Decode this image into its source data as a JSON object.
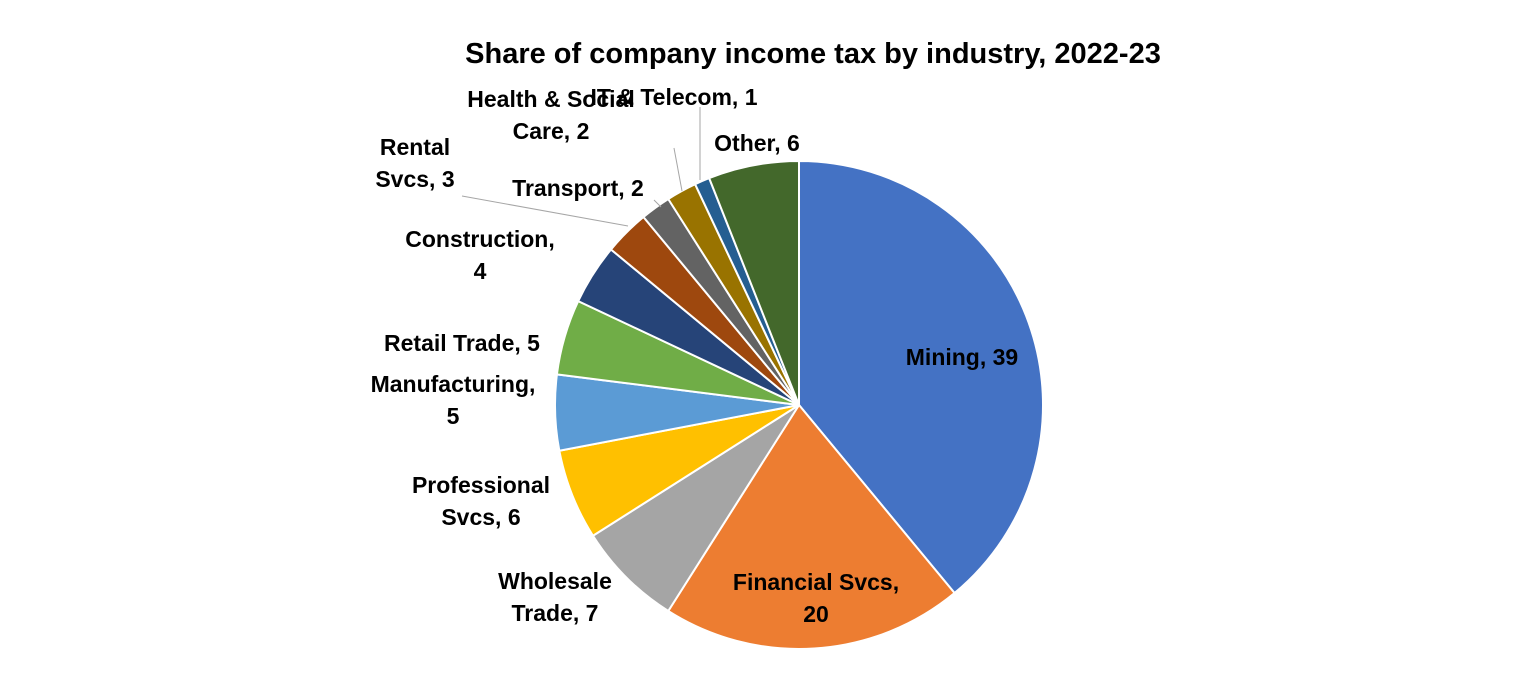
{
  "chart_data": {
    "type": "pie",
    "title": "Share of company income tax by industry, 2022-23",
    "slices": [
      {
        "label": "Mining",
        "value": 39,
        "color": "#4472C4",
        "lines": [
          "Mining, 39"
        ]
      },
      {
        "label": "Financial Svcs",
        "value": 20,
        "color": "#ED7D31",
        "lines": [
          "Financial Svcs,",
          "20"
        ]
      },
      {
        "label": "Wholesale Trade",
        "value": 7,
        "color": "#A5A5A5",
        "lines": [
          "Wholesale",
          "Trade, 7"
        ]
      },
      {
        "label": "Professional Svcs",
        "value": 6,
        "color": "#FFC000",
        "lines": [
          "Professional",
          "Svcs, 6"
        ]
      },
      {
        "label": "Manufacturing",
        "value": 5,
        "color": "#5B9BD5",
        "lines": [
          "Manufacturing,",
          "5"
        ]
      },
      {
        "label": "Retail Trade",
        "value": 5,
        "color": "#70AD47",
        "lines": [
          "Retail Trade, 5"
        ]
      },
      {
        "label": "Construction",
        "value": 4,
        "color": "#264478",
        "lines": [
          "Construction,",
          "4"
        ]
      },
      {
        "label": "Rental Svcs",
        "value": 3,
        "color": "#9E480E",
        "lines": [
          "Rental",
          "Svcs, 3"
        ]
      },
      {
        "label": "Transport",
        "value": 2,
        "color": "#636363",
        "lines": [
          "Transport, 2"
        ]
      },
      {
        "label": "Health & Social Care",
        "value": 2,
        "color": "#997300",
        "lines": [
          "Health & Social",
          "Care, 2"
        ]
      },
      {
        "label": "IT & Telecom",
        "value": 1,
        "color": "#255E91",
        "lines": [
          "IT & Telecom, 1"
        ]
      },
      {
        "label": "Other",
        "value": 6,
        "color": "#43682B",
        "lines": [
          "Other, 6"
        ]
      }
    ]
  }
}
